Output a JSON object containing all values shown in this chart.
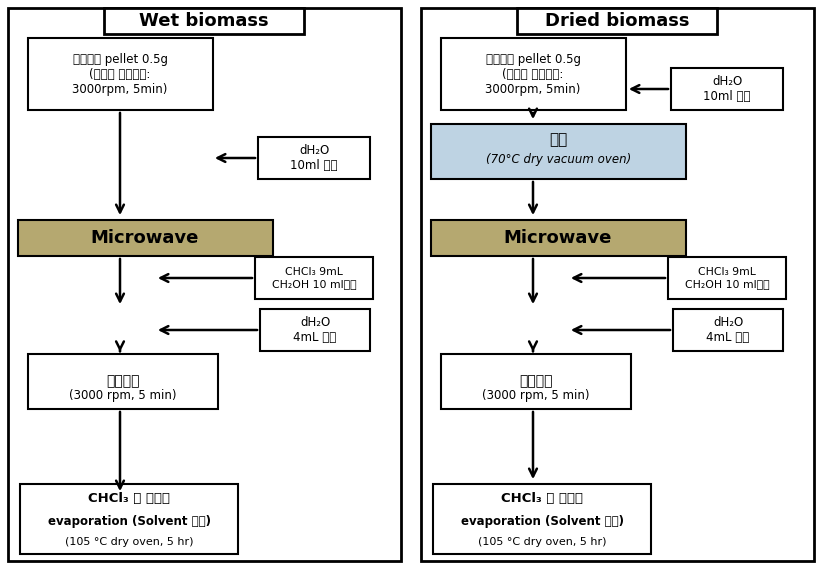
{
  "bg_color": "#ffffff",
  "microwave_color": "#b5a870",
  "drying_color": "#bed3e3",
  "title_wet": "Wet biomass",
  "title_dry": "Dried biomass",
  "box1_text": "미세조류 pellet 0.5g\n(배양액 원심분리:\n3000rpm, 5min)",
  "dh2o_10ml": "dH₂O\n10ml 첨가",
  "drying_box_line1": "건조",
  "drying_box_line2": "(70°C dry vacuum oven)",
  "microwave_text": "Microwave",
  "chcl3_text": "CHCl₃ 9mL\nCH₂OH 10 ml첨가",
  "dh2o_4ml": "dH₂O\n4mL 첨가",
  "centrifuge_line1": "원심분리",
  "centrifuge_line2": "(3000 rpm, 5 min)",
  "final_line1": "CHCl₃ 층 취하여",
  "final_line2": "evaporation (Solvent 제거)",
  "final_line3": "(105 °C dry oven, 5 hr)"
}
